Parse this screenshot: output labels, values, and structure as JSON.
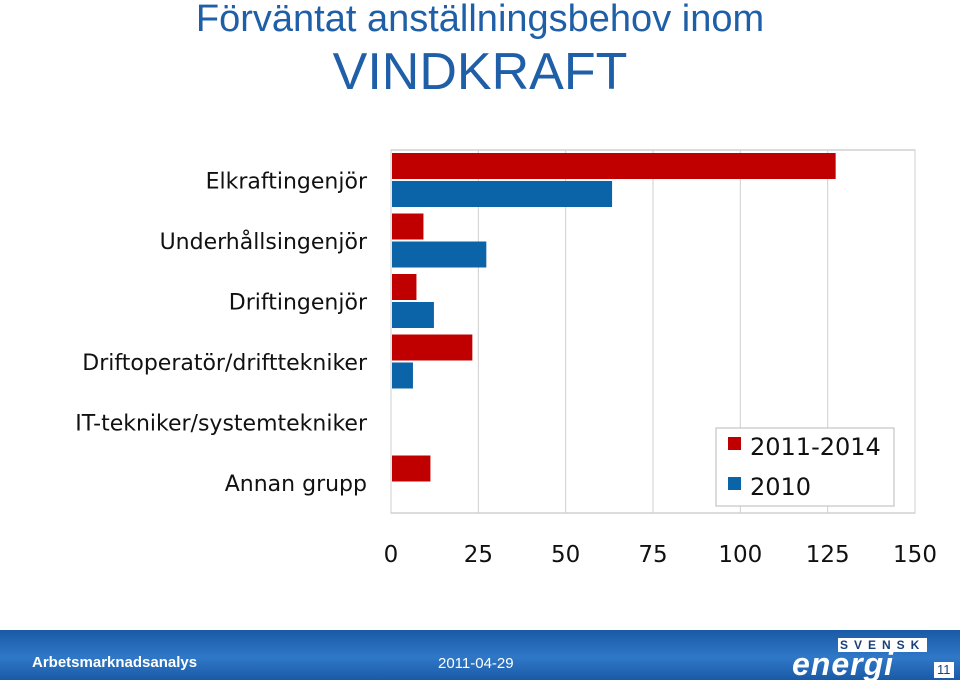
{
  "page": {
    "title_line1": "Förväntat anställningsbehov inom",
    "title_line2": "VINDKRAFT"
  },
  "chart_data": {
    "type": "bar",
    "orientation": "horizontal",
    "title": "",
    "xlabel": "",
    "ylabel": "",
    "categories": [
      "Elkraftingenjör",
      "Underhållsingenjör",
      "Driftingenjör",
      "Driftoperatör/drifttekniker",
      "IT-tekniker/systemtekniker",
      "Annan grupp"
    ],
    "series": [
      {
        "name": "2011-2014",
        "values": [
          127,
          9,
          7,
          23,
          0,
          11
        ],
        "color": "#c00000"
      },
      {
        "name": "2010",
        "values": [
          63,
          27,
          12,
          6,
          0,
          0
        ],
        "color": "#0b63a8"
      }
    ],
    "xlim": [
      0,
      150
    ],
    "xticks": [
      "0",
      "25",
      "50",
      "75",
      "100",
      "125",
      "150"
    ],
    "grid": true,
    "legend": "bottom-right"
  },
  "footer": {
    "left_text": "Arbetsmarknadsanalys",
    "date": "2011-04-29",
    "logo_top": "SVENSK",
    "logo_main": "energi",
    "page_number": "11"
  }
}
